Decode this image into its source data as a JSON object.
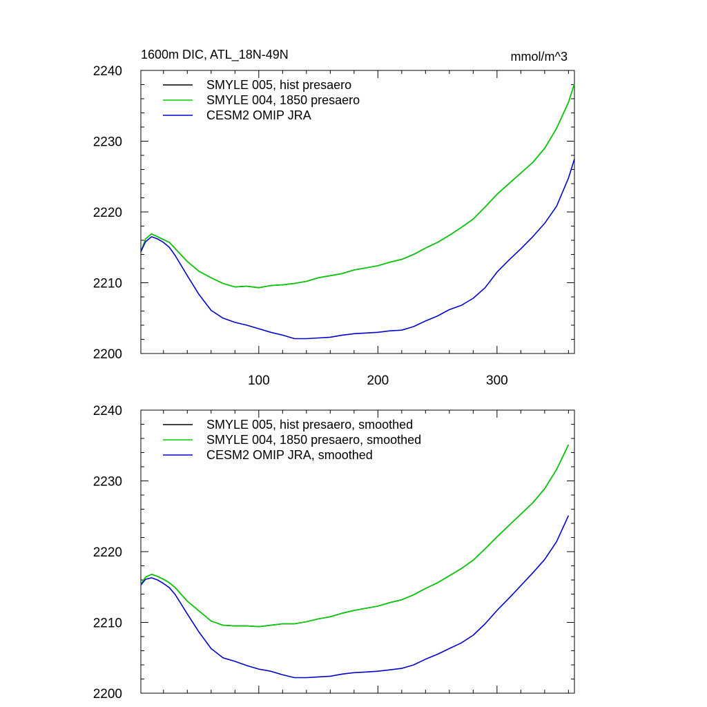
{
  "chart_data": [
    {
      "type": "line",
      "title": "1600m DIC, ATL_18N-49N",
      "units": "mmol/m^3",
      "xlim": [
        1,
        365
      ],
      "ylim": [
        2200,
        2240
      ],
      "xticks": [
        100,
        200,
        300
      ],
      "yticks": [
        2200,
        2210,
        2220,
        2230,
        2240
      ],
      "xtick_labels": [
        "100",
        "200",
        "300"
      ],
      "ytick_labels": [
        "2200",
        "2210",
        "2220",
        "2230",
        "2240"
      ],
      "legend_position": "top-left",
      "series": [
        {
          "name": "SMYLE 005, hist presaero",
          "color": "#000000",
          "x": [
            1,
            5,
            10,
            15,
            20,
            25,
            30,
            40,
            50,
            60,
            70,
            80,
            90,
            100,
            110,
            120,
            130,
            140,
            150,
            160,
            170,
            180,
            190,
            200,
            210,
            220,
            230,
            240,
            250,
            260,
            270,
            280,
            290,
            300,
            310,
            320,
            330,
            340,
            350,
            360,
            365
          ],
          "values": [
            2214.4,
            2216.2,
            2216.9,
            2216.5,
            2216.1,
            2215.7,
            2214.8,
            2213.0,
            2211.6,
            2210.7,
            2209.9,
            2209.4,
            2209.5,
            2209.3,
            2209.6,
            2209.7,
            2209.9,
            2210.2,
            2210.7,
            2211.0,
            2211.3,
            2211.8,
            2212.1,
            2212.4,
            2212.9,
            2213.3,
            2214.0,
            2214.9,
            2215.7,
            2216.7,
            2217.8,
            2219.0,
            2220.7,
            2222.5,
            2224.0,
            2225.5,
            2227.0,
            2229.0,
            2231.8,
            2235.5,
            2238.1
          ]
        },
        {
          "name": "SMYLE 004, 1850 presaero",
          "color": "#00d000",
          "x": [
            1,
            5,
            10,
            15,
            20,
            25,
            30,
            40,
            50,
            60,
            70,
            80,
            90,
            100,
            110,
            120,
            130,
            140,
            150,
            160,
            170,
            180,
            190,
            200,
            210,
            220,
            230,
            240,
            250,
            260,
            270,
            280,
            290,
            300,
            310,
            320,
            330,
            340,
            350,
            360,
            365
          ],
          "values": [
            2214.4,
            2216.2,
            2216.9,
            2216.5,
            2216.1,
            2215.7,
            2214.8,
            2213.0,
            2211.6,
            2210.7,
            2209.9,
            2209.4,
            2209.5,
            2209.3,
            2209.6,
            2209.7,
            2209.9,
            2210.2,
            2210.7,
            2211.0,
            2211.3,
            2211.8,
            2212.1,
            2212.4,
            2212.9,
            2213.3,
            2214.0,
            2214.9,
            2215.7,
            2216.7,
            2217.8,
            2219.0,
            2220.7,
            2222.5,
            2224.0,
            2225.5,
            2227.0,
            2229.0,
            2231.8,
            2235.5,
            2238.1
          ]
        },
        {
          "name": "CESM2 OMIP JRA",
          "color": "#0000cc",
          "x": [
            1,
            5,
            10,
            15,
            20,
            25,
            30,
            40,
            50,
            60,
            70,
            80,
            90,
            100,
            110,
            120,
            130,
            140,
            150,
            160,
            170,
            180,
            190,
            200,
            210,
            220,
            230,
            240,
            250,
            260,
            270,
            280,
            290,
            300,
            310,
            320,
            330,
            340,
            350,
            360,
            365
          ],
          "values": [
            2214.4,
            2215.8,
            2216.5,
            2216.2,
            2215.7,
            2215.0,
            2213.8,
            2211.0,
            2208.3,
            2206.1,
            2205.0,
            2204.4,
            2204.0,
            2203.5,
            2203.0,
            2202.6,
            2202.1,
            2202.1,
            2202.2,
            2202.3,
            2202.6,
            2202.8,
            2202.9,
            2203.0,
            2203.2,
            2203.3,
            2203.8,
            2204.6,
            2205.3,
            2206.2,
            2206.8,
            2207.8,
            2209.3,
            2211.5,
            2213.2,
            2214.8,
            2216.5,
            2218.4,
            2220.8,
            2224.8,
            2227.5
          ]
        }
      ]
    },
    {
      "type": "line",
      "title": "",
      "xlim": [
        1,
        365
      ],
      "ylim": [
        2200,
        2240
      ],
      "xticks": [
        100,
        200,
        300
      ],
      "yticks": [
        2200,
        2210,
        2220,
        2230,
        2240
      ],
      "xtick_labels": [],
      "ytick_labels": [
        "2200",
        "2210",
        "2220",
        "2230",
        "2240"
      ],
      "legend_position": "top-left",
      "series": [
        {
          "name": "SMYLE 005, hist presaero, smoothed",
          "color": "#000000",
          "x": [
            1,
            5,
            10,
            15,
            20,
            25,
            30,
            40,
            50,
            60,
            70,
            80,
            90,
            100,
            110,
            120,
            130,
            140,
            150,
            160,
            170,
            180,
            190,
            200,
            210,
            220,
            230,
            240,
            250,
            260,
            270,
            280,
            290,
            300,
            310,
            320,
            330,
            340,
            350,
            360
          ],
          "values": [
            2215.4,
            2216.4,
            2216.8,
            2216.5,
            2216.1,
            2215.6,
            2214.9,
            2213.0,
            2211.6,
            2210.2,
            2209.6,
            2209.5,
            2209.5,
            2209.4,
            2209.6,
            2209.8,
            2209.8,
            2210.1,
            2210.5,
            2210.8,
            2211.3,
            2211.7,
            2212.0,
            2212.3,
            2212.8,
            2213.2,
            2213.9,
            2214.8,
            2215.6,
            2216.6,
            2217.6,
            2218.8,
            2220.4,
            2222.1,
            2223.7,
            2225.3,
            2226.9,
            2228.9,
            2231.6,
            2235.1
          ]
        },
        {
          "name": "SMYLE 004, 1850 presaero, smoothed",
          "color": "#00d000",
          "x": [
            1,
            5,
            10,
            15,
            20,
            25,
            30,
            40,
            50,
            60,
            70,
            80,
            90,
            100,
            110,
            120,
            130,
            140,
            150,
            160,
            170,
            180,
            190,
            200,
            210,
            220,
            230,
            240,
            250,
            260,
            270,
            280,
            290,
            300,
            310,
            320,
            330,
            340,
            350,
            360
          ],
          "values": [
            2215.4,
            2216.4,
            2216.8,
            2216.5,
            2216.1,
            2215.6,
            2214.9,
            2213.0,
            2211.6,
            2210.2,
            2209.6,
            2209.5,
            2209.5,
            2209.4,
            2209.6,
            2209.8,
            2209.8,
            2210.1,
            2210.5,
            2210.8,
            2211.3,
            2211.7,
            2212.0,
            2212.3,
            2212.8,
            2213.2,
            2213.9,
            2214.8,
            2215.6,
            2216.6,
            2217.6,
            2218.8,
            2220.4,
            2222.1,
            2223.7,
            2225.3,
            2226.9,
            2228.9,
            2231.6,
            2235.1
          ]
        },
        {
          "name": "CESM2 OMIP JRA, smoothed",
          "color": "#0000cc",
          "x": [
            1,
            5,
            10,
            15,
            20,
            25,
            30,
            40,
            50,
            60,
            70,
            80,
            90,
            100,
            110,
            120,
            130,
            140,
            150,
            160,
            170,
            180,
            190,
            200,
            210,
            220,
            230,
            240,
            250,
            260,
            270,
            280,
            290,
            300,
            310,
            320,
            330,
            340,
            350,
            360
          ],
          "values": [
            2215.3,
            2216.1,
            2216.3,
            2216.0,
            2215.5,
            2214.9,
            2213.9,
            2211.2,
            2208.6,
            2206.3,
            2205.0,
            2204.5,
            2203.9,
            2203.4,
            2203.1,
            2202.6,
            2202.2,
            2202.2,
            2202.3,
            2202.4,
            2202.7,
            2202.9,
            2203.0,
            2203.1,
            2203.3,
            2203.5,
            2204.0,
            2204.8,
            2205.5,
            2206.3,
            2207.1,
            2208.2,
            2209.8,
            2211.7,
            2213.4,
            2215.2,
            2217.0,
            2218.9,
            2221.4,
            2225.1
          ]
        }
      ]
    }
  ]
}
